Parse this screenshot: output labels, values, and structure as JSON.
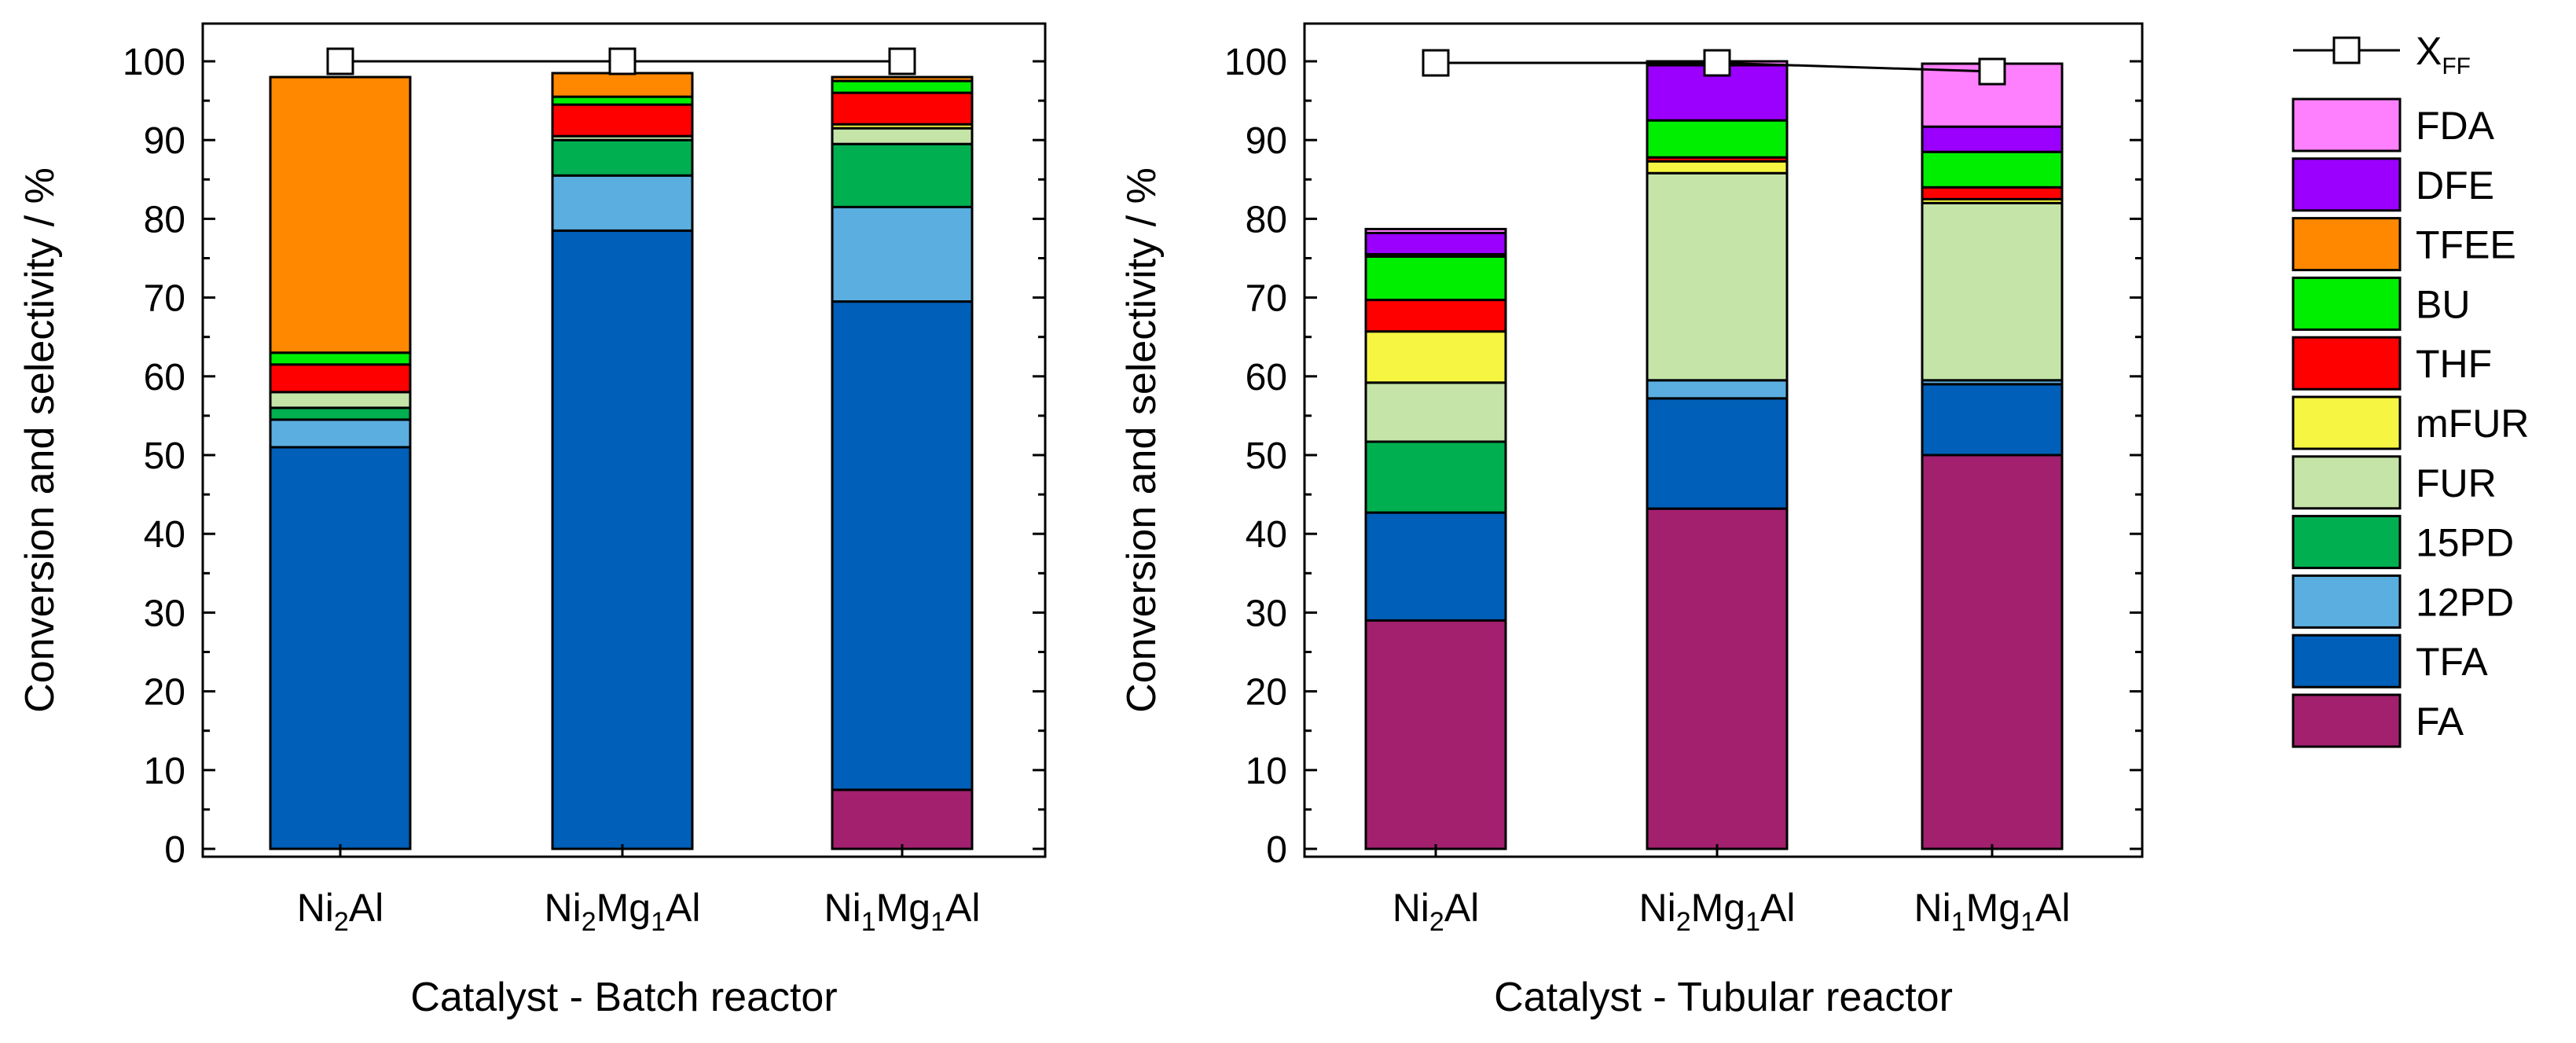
{
  "chart_data": [
    {
      "type": "bar",
      "stacked": true,
      "title": "",
      "xlabel": "Catalyst - Batch reactor",
      "ylabel": "Conversion and selectivity / %",
      "ylim": [
        0,
        105
      ],
      "yticks": [
        0,
        10,
        20,
        30,
        40,
        50,
        60,
        70,
        80,
        90,
        100
      ],
      "categories": [
        {
          "base": "Ni",
          "sub1": "2",
          "mid": "Al",
          "sub2": "",
          "tail": ""
        },
        {
          "base": "Ni",
          "sub1": "2",
          "mid": "Mg",
          "sub2": "1",
          "tail": "Al"
        },
        {
          "base": "Ni",
          "sub1": "1",
          "mid": "Mg",
          "sub2": "1",
          "tail": "Al"
        }
      ],
      "category_labels": [
        "Ni2Al",
        "Ni2Mg1Al",
        "Ni1Mg1Al"
      ],
      "series": [
        {
          "name": "FA",
          "values": [
            0,
            0,
            7.5
          ]
        },
        {
          "name": "TFA",
          "values": [
            51,
            78.5,
            62
          ]
        },
        {
          "name": "12PD",
          "values": [
            3.5,
            7,
            12
          ]
        },
        {
          "name": "15PD",
          "values": [
            1.5,
            4.5,
            8
          ]
        },
        {
          "name": "FUR",
          "values": [
            2,
            0.5,
            2
          ]
        },
        {
          "name": "mFUR",
          "values": [
            0,
            0,
            0.5
          ]
        },
        {
          "name": "THF",
          "values": [
            3.5,
            4,
            4
          ]
        },
        {
          "name": "BU",
          "values": [
            1.5,
            1,
            1.5
          ]
        },
        {
          "name": "TFEE",
          "values": [
            35,
            3,
            0.5
          ]
        },
        {
          "name": "DFE",
          "values": [
            0,
            0,
            0
          ]
        },
        {
          "name": "FDA",
          "values": [
            0,
            0,
            0
          ]
        }
      ],
      "conversion": {
        "name": "XFF",
        "values": [
          100,
          100,
          100
        ]
      }
    },
    {
      "type": "bar",
      "stacked": true,
      "title": "",
      "xlabel": "Catalyst - Tubular reactor",
      "ylabel": "Conversion and selectivity / %",
      "ylim": [
        0,
        105
      ],
      "yticks": [
        0,
        10,
        20,
        30,
        40,
        50,
        60,
        70,
        80,
        90,
        100
      ],
      "categories": [
        {
          "base": "Ni",
          "sub1": "2",
          "mid": "Al",
          "sub2": "",
          "tail": ""
        },
        {
          "base": "Ni",
          "sub1": "2",
          "mid": "Mg",
          "sub2": "1",
          "tail": "Al"
        },
        {
          "base": "Ni",
          "sub1": "1",
          "mid": "Mg",
          "sub2": "1",
          "tail": "Al"
        }
      ],
      "category_labels": [
        "Ni2Al",
        "Ni2Mg1Al",
        "Ni1Mg1Al"
      ],
      "series": [
        {
          "name": "FA",
          "values": [
            29,
            43.2,
            50
          ]
        },
        {
          "name": "TFA",
          "values": [
            13.7,
            14,
            9
          ]
        },
        {
          "name": "12PD",
          "values": [
            0,
            2.3,
            0.5
          ]
        },
        {
          "name": "15PD",
          "values": [
            9,
            0,
            0
          ]
        },
        {
          "name": "FUR",
          "values": [
            7.5,
            26.3,
            22.5
          ]
        },
        {
          "name": "mFUR",
          "values": [
            6.5,
            1.5,
            0.5
          ]
        },
        {
          "name": "THF",
          "values": [
            4,
            0.5,
            1.5
          ]
        },
        {
          "name": "BU",
          "values": [
            5.5,
            4.7,
            4.5
          ]
        },
        {
          "name": "TFEE",
          "values": [
            0.3,
            0,
            0
          ]
        },
        {
          "name": "DFE",
          "values": [
            2.7,
            7,
            3.2
          ]
        },
        {
          "name": "FDA",
          "values": [
            0.5,
            0.5,
            8
          ]
        }
      ],
      "conversion": {
        "name": "XFF",
        "values": [
          99.8,
          99.8,
          98.7
        ]
      }
    }
  ],
  "legend": {
    "line_entry": {
      "base": "X",
      "sub": "FF"
    },
    "entries": [
      "FDA",
      "DFE",
      "TFEE",
      "BU",
      "THF",
      "mFUR",
      "FUR",
      "15PD",
      "12PD",
      "TFA",
      "FA"
    ]
  },
  "colors": {
    "FA": "#A3206E",
    "TFA": "#005FB8",
    "12PD": "#5BAEE0",
    "15PD": "#00B050",
    "FUR": "#C5E5A8",
    "mFUR": "#F5F542",
    "THF": "#FF0000",
    "BU": "#00EE00",
    "TFEE": "#FF8800",
    "DFE": "#9B00FF",
    "FDA": "#FF80FF"
  }
}
